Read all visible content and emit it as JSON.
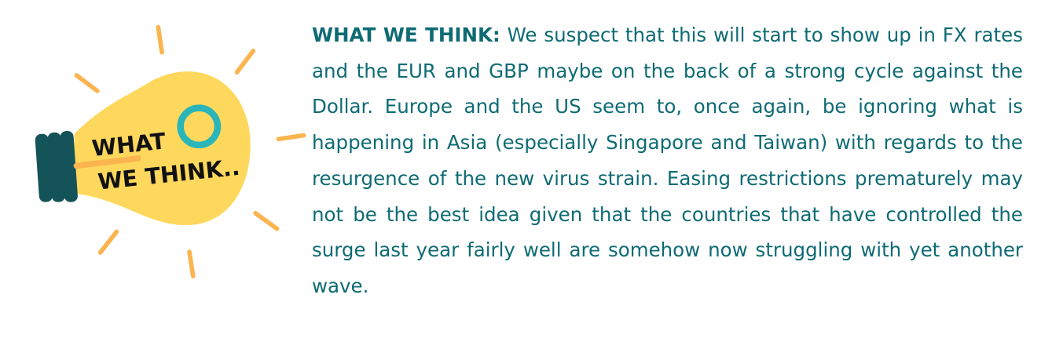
{
  "illustration": {
    "logo_text_line1": "WHAT",
    "logo_text_line2": "WE THINK..",
    "colors": {
      "bulb": "#fdd85d",
      "base": "#145357",
      "rays": "#fbb450",
      "ring": "#2ab5b8"
    }
  },
  "article": {
    "lead": "WHAT WE THINK:",
    "body": " We suspect that this will start to show up in FX rates and the EUR and GBP maybe on the back of a strong cycle against the Dollar. Europe and the US seem to, once again, be ignoring what is happening in Asia (especially Singapore and Taiwan) with regards to the resurgence of the new virus strain. Easing restrictions prematurely may not be the best idea given that the countries that have controlled the surge last year fairly well are somehow now struggling with yet another wave."
  },
  "colors": {
    "text": "#0e6b73"
  }
}
